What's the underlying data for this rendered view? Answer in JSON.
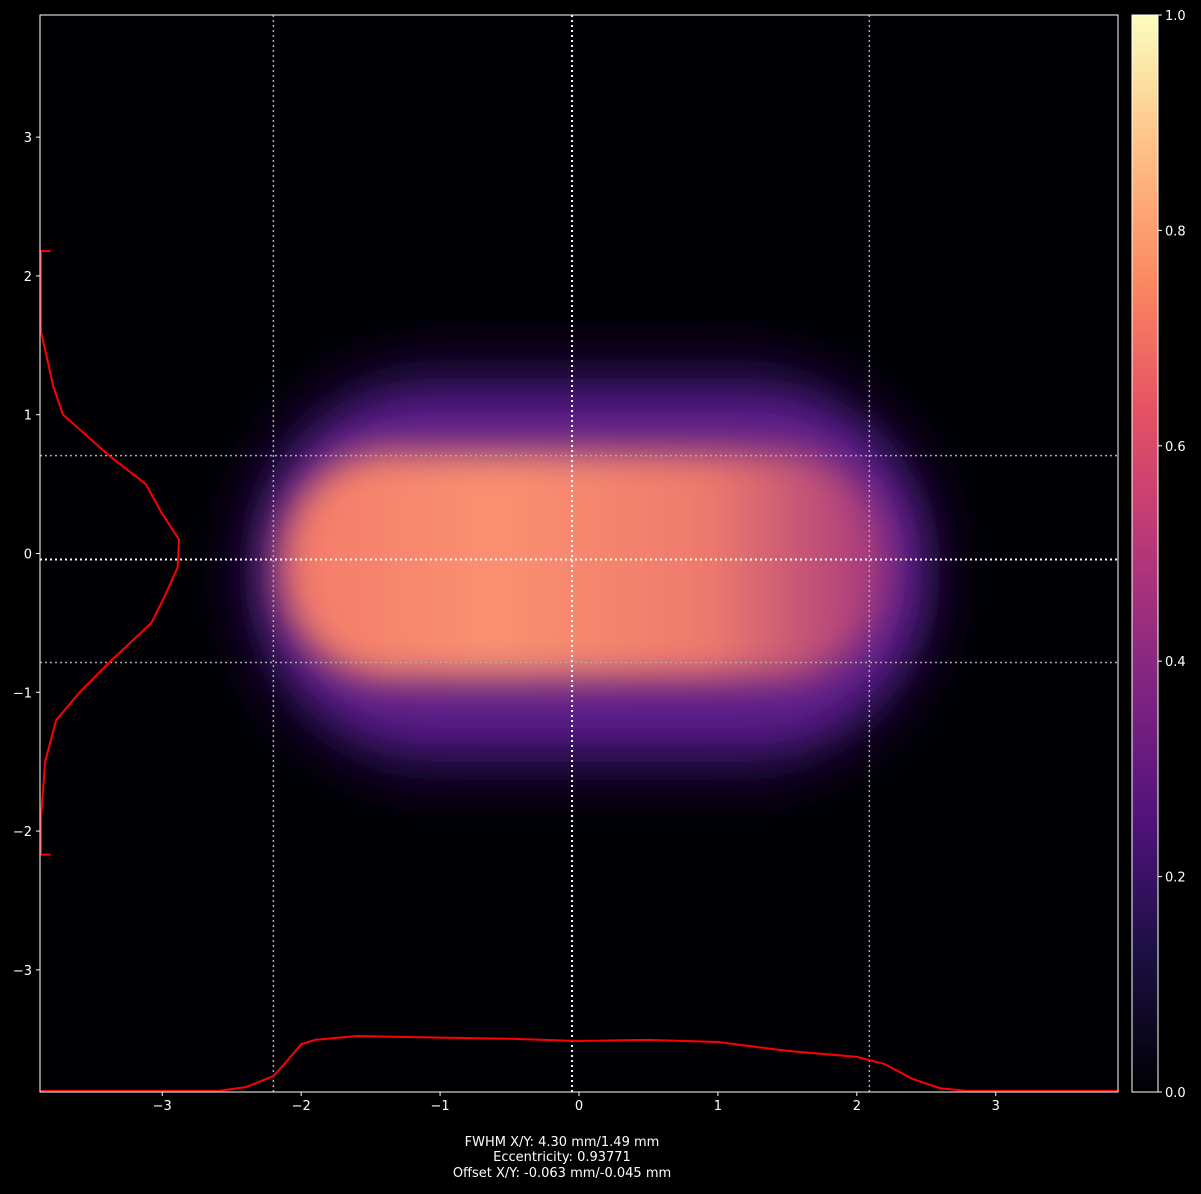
{
  "chart_data": {
    "type": "heatmap",
    "colormap": "magma",
    "xlim": [
      -3.88,
      3.88
    ],
    "ylim": [
      -3.88,
      3.88
    ],
    "x_ticks": [
      -3,
      -2,
      -1,
      0,
      1,
      2,
      3
    ],
    "y_ticks": [
      -3,
      -2,
      -1,
      0,
      1,
      2,
      3
    ],
    "x_tick_labels": [
      "−3",
      "−2",
      "−1",
      "0",
      "1",
      "2",
      "3"
    ],
    "y_tick_labels": [
      "−3",
      "−2",
      "−1",
      "0",
      "1",
      "2",
      "3"
    ],
    "colorbar": {
      "range": [
        0,
        1
      ],
      "ticks": [
        0,
        0.2,
        0.4,
        0.6,
        0.8,
        1.0
      ],
      "tick_labels": [
        "0.0",
        "0.2",
        "0.4",
        "0.6",
        "0.8",
        "1.0"
      ]
    },
    "fwhm_lines_x": [
      -2.2,
      2.09
    ],
    "fwhm_lines_y": [
      0.705,
      -0.785
    ],
    "center_x": -0.05,
    "center_y": -0.043,
    "profile_color": "#ff0000",
    "x_profile": {
      "x": [
        -3.88,
        -2.6,
        -2.4,
        -2.2,
        -2.1,
        -2.0,
        -1.9,
        -1.6,
        -1.0,
        -0.5,
        0,
        0.5,
        1.0,
        1.5,
        2.0,
        2.2,
        2.4,
        2.6,
        2.8,
        3.88
      ],
      "values": [
        0,
        0,
        0.07,
        0.27,
        0.55,
        0.85,
        0.93,
        1.0,
        0.97,
        0.95,
        0.91,
        0.93,
        0.89,
        0.73,
        0.62,
        0.49,
        0.22,
        0.05,
        0,
        0
      ]
    },
    "y_profile": {
      "y": [
        2.18,
        2.18,
        1.6,
        1.2,
        1.0,
        0.7,
        0.5,
        0.3,
        0.1,
        -0.1,
        -0.3,
        -0.5,
        -0.78,
        -1.0,
        -1.2,
        -1.5,
        -1.9,
        -2.17,
        -2.17
      ],
      "values": [
        0.07,
        0,
        0,
        0.09,
        0.16,
        0.5,
        0.76,
        0.87,
        1.0,
        0.99,
        0.9,
        0.8,
        0.5,
        0.28,
        0.11,
        0.03,
        0,
        0,
        0.07
      ]
    },
    "annotation": [
      "FWHM X/Y: 4.30 mm/1.49 mm",
      "Eccentricity: 0.93771",
      "Offset X/Y: -0.063 mm/-0.045 mm"
    ]
  }
}
